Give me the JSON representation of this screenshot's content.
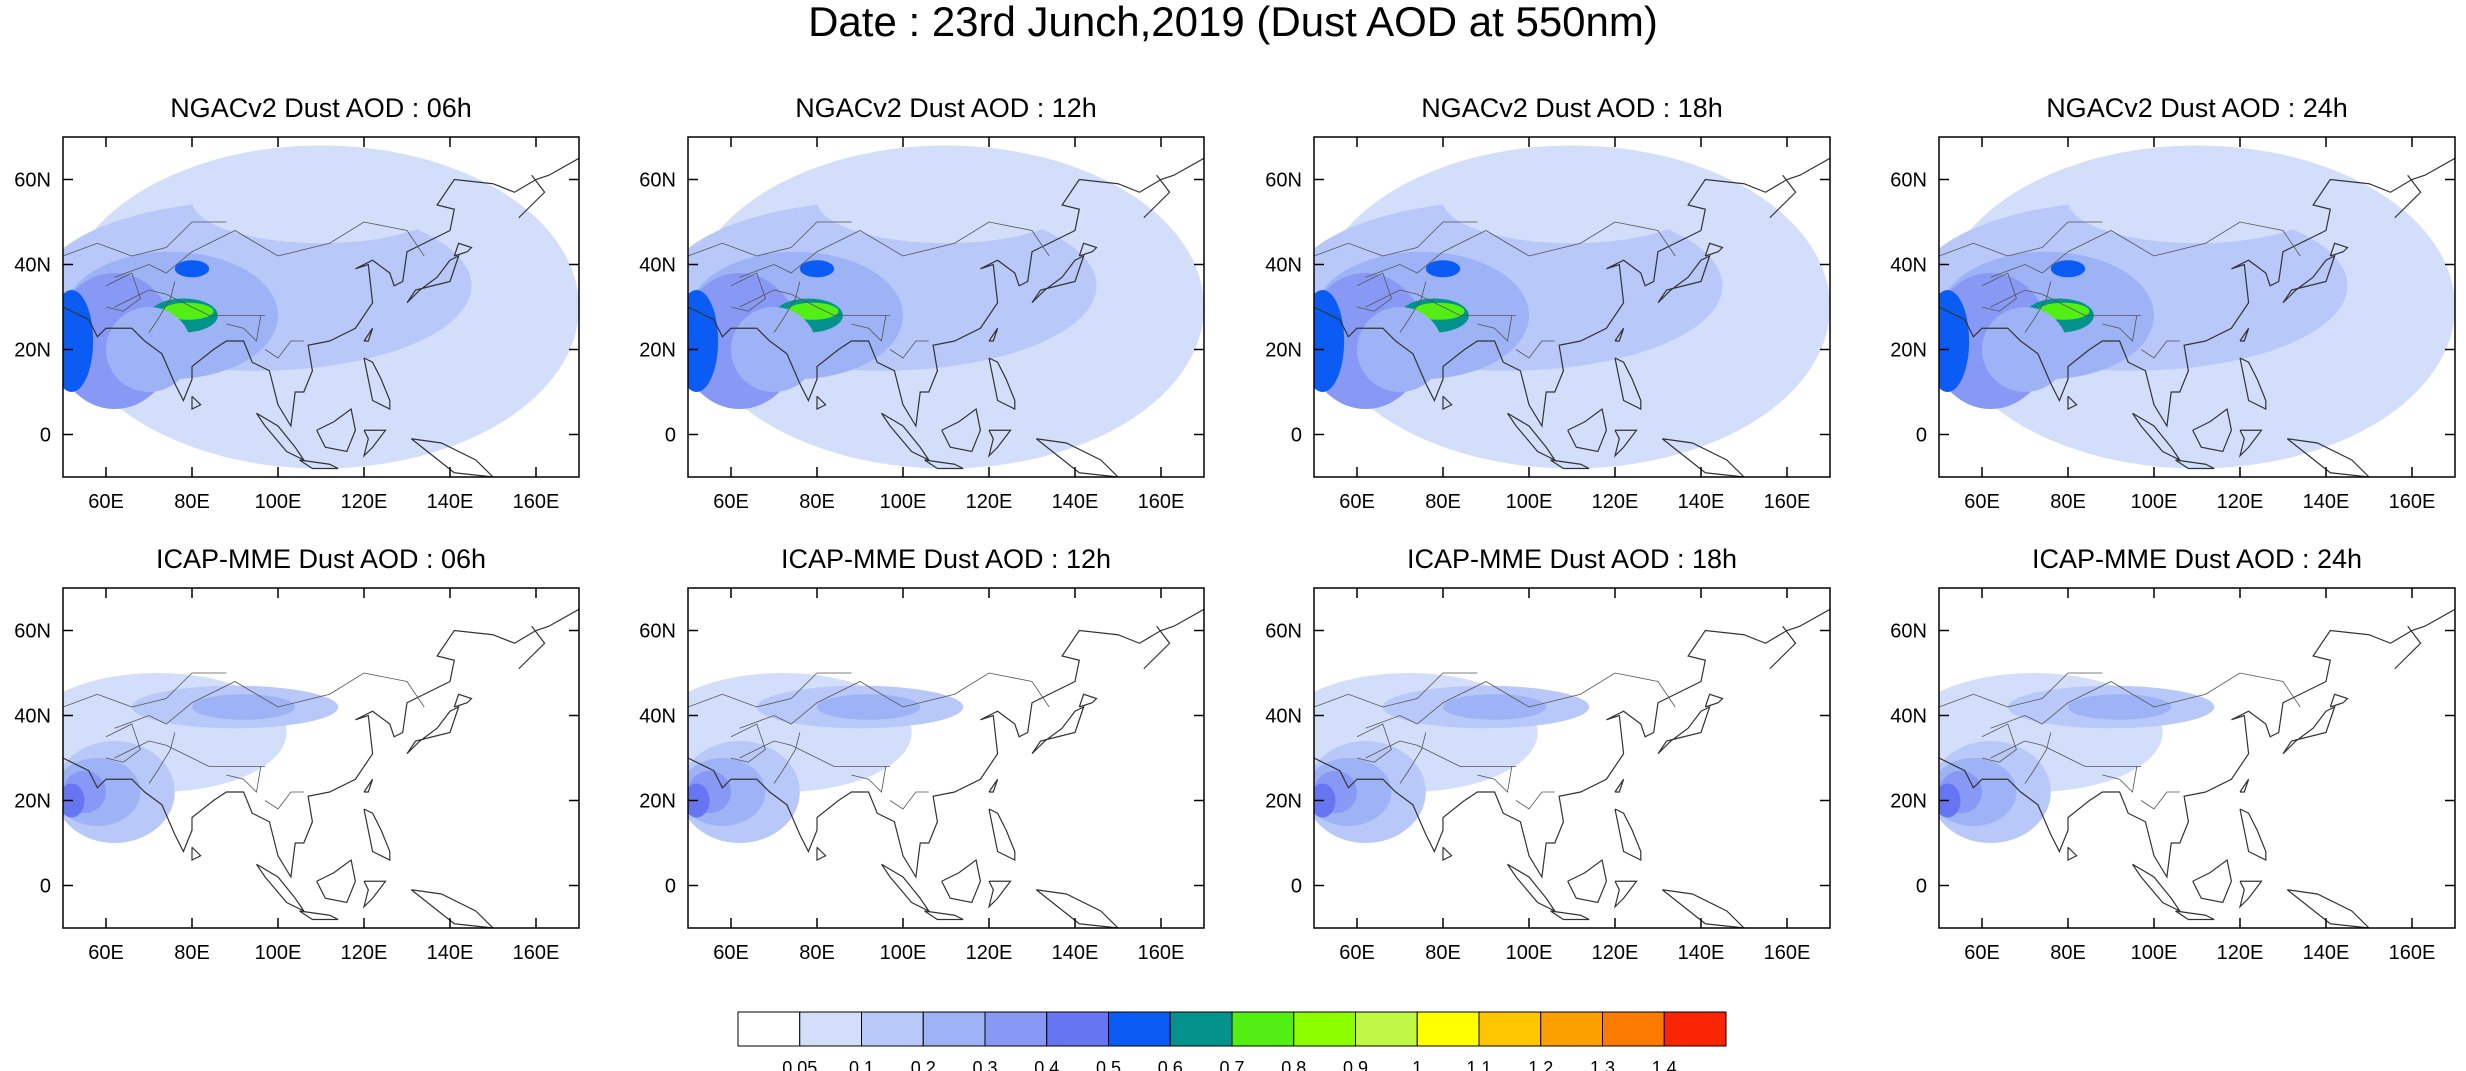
{
  "title": "Date : 23rd Junch,2019 (Dust AOD at 550nm)",
  "panels": [
    {
      "title": "NGACv2 Dust AOD : 06h",
      "model": "NGACv2",
      "hour": "06h"
    },
    {
      "title": "NGACv2 Dust AOD : 12h",
      "model": "NGACv2",
      "hour": "12h"
    },
    {
      "title": "NGACv2 Dust AOD : 18h",
      "model": "NGACv2",
      "hour": "18h"
    },
    {
      "title": "NGACv2 Dust AOD : 24h",
      "model": "NGACv2",
      "hour": "24h"
    },
    {
      "title": "ICAP-MME Dust AOD : 06h",
      "model": "ICAP-MME",
      "hour": "06h"
    },
    {
      "title": "ICAP-MME Dust AOD : 12h",
      "model": "ICAP-MME",
      "hour": "12h"
    },
    {
      "title": "ICAP-MME Dust AOD : 18h",
      "model": "ICAP-MME",
      "hour": "18h"
    },
    {
      "title": "ICAP-MME Dust AOD : 24h",
      "model": "ICAP-MME",
      "hour": "24h"
    }
  ],
  "x_ticks": [
    "60E",
    "80E",
    "100E",
    "120E",
    "140E",
    "160E"
  ],
  "y_ticks": [
    "60N",
    "40N",
    "20N",
    "0"
  ],
  "map_extent": {
    "lon": [
      50,
      170
    ],
    "lat": [
      -10,
      70
    ]
  },
  "colorbar": {
    "colors": [
      "#ffffff",
      "#d3defb",
      "#b8c8f8",
      "#9db3f6",
      "#8799f4",
      "#6675f2",
      "#0b5cf5",
      "#04938c",
      "#53ee13",
      "#8dfe00",
      "#bff744",
      "#ffff00",
      "#fec500",
      "#fca000",
      "#fd7a00",
      "#fc2503"
    ],
    "labels": [
      "0.05",
      "0.1",
      "0.2",
      "0.3",
      "0.4",
      "0.5",
      "0.6",
      "0.7",
      "0.8",
      "0.9",
      "1",
      "1.1",
      "1.2",
      "1.3",
      "1.4"
    ]
  }
}
